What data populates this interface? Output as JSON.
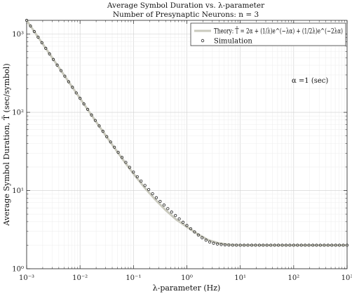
{
  "chart_data": {
    "type": "line",
    "title": "Average Symbol Duration vs. λ-parameter",
    "subtitle": "Number of Presynaptic Neurons: n = 3",
    "xlabel": "λ-parameter (Hz)",
    "ylabel": "Average Symbol Duration, T̄ (sec/symbol)",
    "xscale": "log",
    "yscale": "log",
    "xlim": [
      0.001,
      1000
    ],
    "ylim": [
      1,
      1500
    ],
    "x_ticks": [
      "10⁻³",
      "10⁻²",
      "10⁻¹",
      "10⁰",
      "10¹",
      "10²",
      "10³"
    ],
    "y_ticks": [
      "10⁰",
      "10¹",
      "10²",
      "10³"
    ],
    "grid": true,
    "legend_position": "top-right",
    "annotation": "α =1 (sec)",
    "alpha": 1,
    "series": [
      {
        "name": "Theory: T̄ = 2α + (1/λ)e^(−λα) + (1/2λ)e^(−2λα)",
        "style": "line",
        "color": "#c9c9bd",
        "x": [
          0.001,
          0.00158,
          0.00251,
          0.00398,
          0.00631,
          0.01,
          0.0158,
          0.0251,
          0.0398,
          0.0631,
          0.1,
          0.158,
          0.251,
          0.398,
          0.631,
          1,
          1.58,
          2.51,
          3.98,
          6.31,
          10,
          100,
          1000
        ],
        "y": [
          1499,
          949,
          598,
          378,
          238,
          151,
          95.4,
          60.5,
          38.7,
          25.0,
          16.4,
          11.1,
          7.78,
          5.64,
          4.26,
          3.43,
          2.79,
          2.33,
          2.12,
          2.03,
          2.01,
          2.0,
          2.0
        ]
      },
      {
        "name": "Simulation",
        "style": "marker",
        "marker": "circle",
        "color": "#222222",
        "x": [
          0.001,
          0.00118,
          0.00139,
          0.00164,
          0.00193,
          0.00228,
          0.00268,
          0.00316,
          0.00373,
          0.0044,
          0.00518,
          0.00611,
          0.0072,
          0.00848,
          0.01,
          0.0118,
          0.0139,
          0.0164,
          0.0193,
          0.0228,
          0.0268,
          0.0316,
          0.0373,
          0.044,
          0.0518,
          0.0611,
          0.072,
          0.0848,
          0.1,
          0.118,
          0.139,
          0.164,
          0.193,
          0.228,
          0.268,
          0.316,
          0.373,
          0.44,
          0.518,
          0.611,
          0.72,
          0.848,
          1,
          1.18,
          1.39,
          1.64,
          1.93,
          2.28,
          2.68,
          3.16,
          3.73,
          4.4,
          5.18,
          6.11,
          7.2,
          8.48,
          10,
          11.8,
          13.9,
          16.4,
          19.3,
          22.8,
          26.8,
          31.6,
          37.3,
          44,
          51.8,
          61.1,
          72,
          84.8,
          100,
          118,
          139,
          164,
          193,
          228,
          268,
          316,
          373,
          440,
          518,
          611,
          720,
          848,
          1000
        ],
        "y": [
          1499,
          1270,
          1078,
          914,
          776,
          658,
          559,
          474,
          402,
          341,
          290,
          246,
          209,
          177,
          151,
          128,
          109,
          92.4,
          78.7,
          67.1,
          57.2,
          48.9,
          41.8,
          35.8,
          30.8,
          26.5,
          22.9,
          19.8,
          17.2,
          15.0,
          13.2,
          11.6,
          10.3,
          9.1,
          8.1,
          7.26,
          6.52,
          5.87,
          5.3,
          4.79,
          4.34,
          3.93,
          3.57,
          3.25,
          2.96,
          2.7,
          2.49,
          2.32,
          2.2,
          2.12,
          2.07,
          2.04,
          2.02,
          2.01,
          2.0,
          2.0,
          2.0,
          2.0,
          2.0,
          2.0,
          2.0,
          2.0,
          2.0,
          2.0,
          2.0,
          2.0,
          2.0,
          2.0,
          2.0,
          2.0,
          2.0,
          2.0,
          2.0,
          2.0,
          2.0,
          2.0,
          2.0,
          2.0,
          2.0,
          2.0,
          2.0,
          2.0,
          2.0,
          2.0,
          2.0
        ]
      }
    ]
  }
}
